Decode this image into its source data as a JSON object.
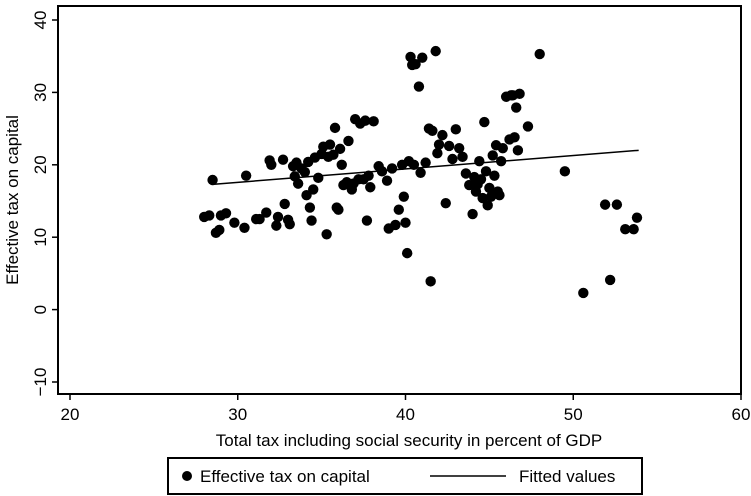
{
  "chart_data": {
    "type": "scatter",
    "xlabel": "Total tax including social security in percent of GDP",
    "ylabel": "Effective tax on capital",
    "xlim": [
      20,
      60
    ],
    "ylim": [
      -10,
      40
    ],
    "xticks": [
      20,
      30,
      40,
      50,
      60
    ],
    "yticks": [
      -10,
      0,
      10,
      20,
      30,
      40
    ],
    "grid": false,
    "legend_placement": "bottom",
    "series": [
      {
        "name": "Effective tax on capital",
        "type": "scatter",
        "color": "#000000",
        "points": [
          [
            28.0,
            12.8
          ],
          [
            28.3,
            13.0
          ],
          [
            28.5,
            17.9
          ],
          [
            28.7,
            10.6
          ],
          [
            28.9,
            11.0
          ],
          [
            29.0,
            13.0
          ],
          [
            29.3,
            13.3
          ],
          [
            29.8,
            12.0
          ],
          [
            30.4,
            11.3
          ],
          [
            30.5,
            18.5
          ],
          [
            31.1,
            12.5
          ],
          [
            31.3,
            12.5
          ],
          [
            31.7,
            13.4
          ],
          [
            31.9,
            20.6
          ],
          [
            32.0,
            20.0
          ],
          [
            32.3,
            11.6
          ],
          [
            32.4,
            12.8
          ],
          [
            32.7,
            20.7
          ],
          [
            32.8,
            14.6
          ],
          [
            33.0,
            12.4
          ],
          [
            33.1,
            11.8
          ],
          [
            33.3,
            19.8
          ],
          [
            33.4,
            18.4
          ],
          [
            33.5,
            20.3
          ],
          [
            33.6,
            17.4
          ],
          [
            33.8,
            19.5
          ],
          [
            34.0,
            19.0
          ],
          [
            34.1,
            15.8
          ],
          [
            34.2,
            20.4
          ],
          [
            34.3,
            14.1
          ],
          [
            34.4,
            12.3
          ],
          [
            34.5,
            16.6
          ],
          [
            34.6,
            21.0
          ],
          [
            34.8,
            18.2
          ],
          [
            35.0,
            21.5
          ],
          [
            35.1,
            22.5
          ],
          [
            35.3,
            10.4
          ],
          [
            35.4,
            21.1
          ],
          [
            35.5,
            22.8
          ],
          [
            35.7,
            21.4
          ],
          [
            35.8,
            25.1
          ],
          [
            35.9,
            14.1
          ],
          [
            36.0,
            13.8
          ],
          [
            36.1,
            22.2
          ],
          [
            36.2,
            20.0
          ],
          [
            36.3,
            17.2
          ],
          [
            36.5,
            17.6
          ],
          [
            36.6,
            23.3
          ],
          [
            36.8,
            16.6
          ],
          [
            36.9,
            17.4
          ],
          [
            37.0,
            26.3
          ],
          [
            37.2,
            18.0
          ],
          [
            37.3,
            25.7
          ],
          [
            37.5,
            18.0
          ],
          [
            37.6,
            26.1
          ],
          [
            37.7,
            12.3
          ],
          [
            37.8,
            18.5
          ],
          [
            37.9,
            16.9
          ],
          [
            38.1,
            26.0
          ],
          [
            38.4,
            19.8
          ],
          [
            38.6,
            19.1
          ],
          [
            38.9,
            17.8
          ],
          [
            39.0,
            11.2
          ],
          [
            39.2,
            19.5
          ],
          [
            39.4,
            11.7
          ],
          [
            39.6,
            13.8
          ],
          [
            39.8,
            20.0
          ],
          [
            39.9,
            15.6
          ],
          [
            40.0,
            12.0
          ],
          [
            40.1,
            7.8
          ],
          [
            40.2,
            20.5
          ],
          [
            40.3,
            34.9
          ],
          [
            40.4,
            33.8
          ],
          [
            40.5,
            20.0
          ],
          [
            40.6,
            33.9
          ],
          [
            40.8,
            30.8
          ],
          [
            40.9,
            18.9
          ],
          [
            41.0,
            34.8
          ],
          [
            41.2,
            20.3
          ],
          [
            41.4,
            25.0
          ],
          [
            41.5,
            3.9
          ],
          [
            41.6,
            24.7
          ],
          [
            41.8,
            35.7
          ],
          [
            41.9,
            21.6
          ],
          [
            42.0,
            22.8
          ],
          [
            42.2,
            24.1
          ],
          [
            42.4,
            14.7
          ],
          [
            42.6,
            22.6
          ],
          [
            42.8,
            20.8
          ],
          [
            43.0,
            24.9
          ],
          [
            43.2,
            22.3
          ],
          [
            43.4,
            21.1
          ],
          [
            43.6,
            18.8
          ],
          [
            43.8,
            17.2
          ],
          [
            44.0,
            13.2
          ],
          [
            44.1,
            18.3
          ],
          [
            44.2,
            16.3
          ],
          [
            44.3,
            17.3
          ],
          [
            44.4,
            20.5
          ],
          [
            44.5,
            18.0
          ],
          [
            44.6,
            15.4
          ],
          [
            44.7,
            25.9
          ],
          [
            44.8,
            19.1
          ],
          [
            44.9,
            14.4
          ],
          [
            45.0,
            16.8
          ],
          [
            45.1,
            15.6
          ],
          [
            45.2,
            21.3
          ],
          [
            45.3,
            18.5
          ],
          [
            45.4,
            22.7
          ],
          [
            45.5,
            16.3
          ],
          [
            45.6,
            15.8
          ],
          [
            45.7,
            20.5
          ],
          [
            45.8,
            22.3
          ],
          [
            46.0,
            29.4
          ],
          [
            46.2,
            23.5
          ],
          [
            46.3,
            29.6
          ],
          [
            46.4,
            29.6
          ],
          [
            46.5,
            23.8
          ],
          [
            46.6,
            27.9
          ],
          [
            46.7,
            22.0
          ],
          [
            46.8,
            29.8
          ],
          [
            47.3,
            25.3
          ],
          [
            48.0,
            35.3
          ],
          [
            49.5,
            19.1
          ],
          [
            50.6,
            2.3
          ],
          [
            51.9,
            14.5
          ],
          [
            52.2,
            4.1
          ],
          [
            52.6,
            14.5
          ],
          [
            53.1,
            11.1
          ],
          [
            53.6,
            11.1
          ],
          [
            53.8,
            12.7
          ]
        ]
      },
      {
        "name": "Fitted values",
        "type": "line",
        "color": "#000000",
        "x": [
          28.5,
          53.9
        ],
        "y": [
          17.3,
          22.0
        ]
      }
    ]
  }
}
